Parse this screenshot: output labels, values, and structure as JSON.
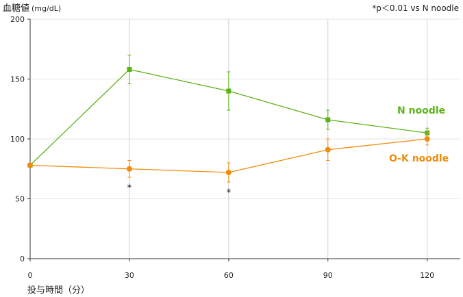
{
  "chart_data": {
    "type": "line",
    "ylabel": "血糖値",
    "yunit": "(mg/dL)",
    "xlabel": "投与時間（分）",
    "note": "*p＜0.01 vs N noodle",
    "x": [
      0,
      30,
      60,
      90,
      120
    ],
    "xticks": [
      "0",
      "30",
      "60",
      "90",
      "120"
    ],
    "yticks": [
      "0",
      "50",
      "100",
      "150",
      "200"
    ],
    "ylim": [
      0,
      200
    ],
    "xlim": [
      0,
      130
    ],
    "grid": "vertical and horizontal",
    "series": [
      {
        "name": "N noodle",
        "color": "#5bb318",
        "marker": "square",
        "values": [
          78,
          158,
          140,
          116,
          105
        ],
        "errors": [
          0,
          12,
          16,
          8,
          4
        ]
      },
      {
        "name": "O-K noodle",
        "color": "#f08c0a",
        "marker": "circle",
        "values": [
          78,
          75,
          72,
          91,
          100
        ],
        "errors": [
          0,
          7,
          8,
          9,
          5
        ]
      }
    ],
    "significance": [
      {
        "x": 30,
        "label": "*"
      },
      {
        "x": 60,
        "label": "*"
      }
    ]
  }
}
